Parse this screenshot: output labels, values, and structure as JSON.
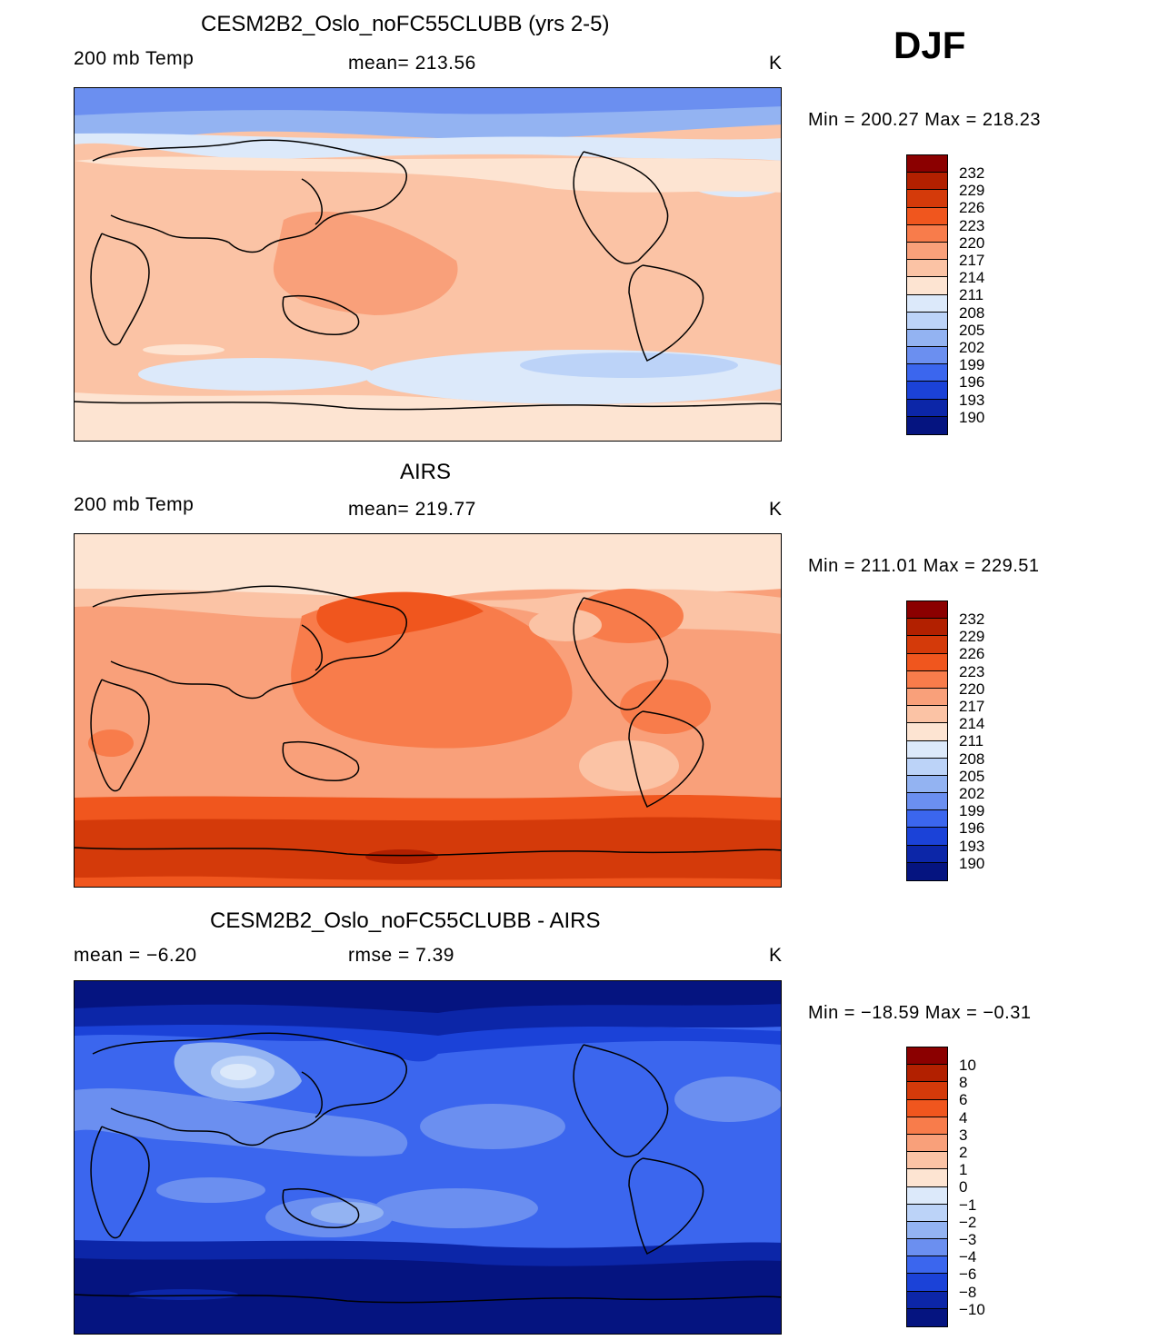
{
  "season": "DJF",
  "panels": [
    {
      "title": "CESM2B2_Oslo_noFC55CLUBB (yrs 2-5)",
      "left_label": "200 mb Temp",
      "center_label": "mean= 213.56",
      "units": "K",
      "minmax": "Min = 200.27 Max = 218.23",
      "colorbar_labels": [
        "232",
        "229",
        "226",
        "223",
        "220",
        "217",
        "214",
        "211",
        "208",
        "205",
        "202",
        "199",
        "196",
        "193",
        "190"
      ]
    },
    {
      "title": "AIRS",
      "left_label": "200 mb Temp",
      "center_label": "mean= 219.77",
      "units": "K",
      "minmax": "Min = 211.01 Max = 229.51",
      "colorbar_labels": [
        "232",
        "229",
        "226",
        "223",
        "220",
        "217",
        "214",
        "211",
        "208",
        "205",
        "202",
        "199",
        "196",
        "193",
        "190"
      ]
    },
    {
      "title": "CESM2B2_Oslo_noFC55CLUBB - AIRS",
      "left_label": "mean =   −6.20",
      "center_label": "rmse =    7.39",
      "units": "K",
      "minmax": "Min = −18.59 Max =   −0.31",
      "colorbar_labels": [
        "10",
        "8",
        "6",
        "4",
        "3",
        "2",
        "1",
        "0",
        "−1",
        "−2",
        "−3",
        "−4",
        "−6",
        "−8",
        "−10"
      ]
    }
  ],
  "colorbar_colors": [
    "#8b0000",
    "#b22000",
    "#d43a0a",
    "#f0561e",
    "#f87c4b",
    "#f9a07a",
    "#fbc3a5",
    "#fde4d2",
    "#dce9fa",
    "#bcd3f8",
    "#93b3f2",
    "#6b8ff0",
    "#3b66ee",
    "#1b42d8",
    "#0c26a8",
    "#051480"
  ]
}
